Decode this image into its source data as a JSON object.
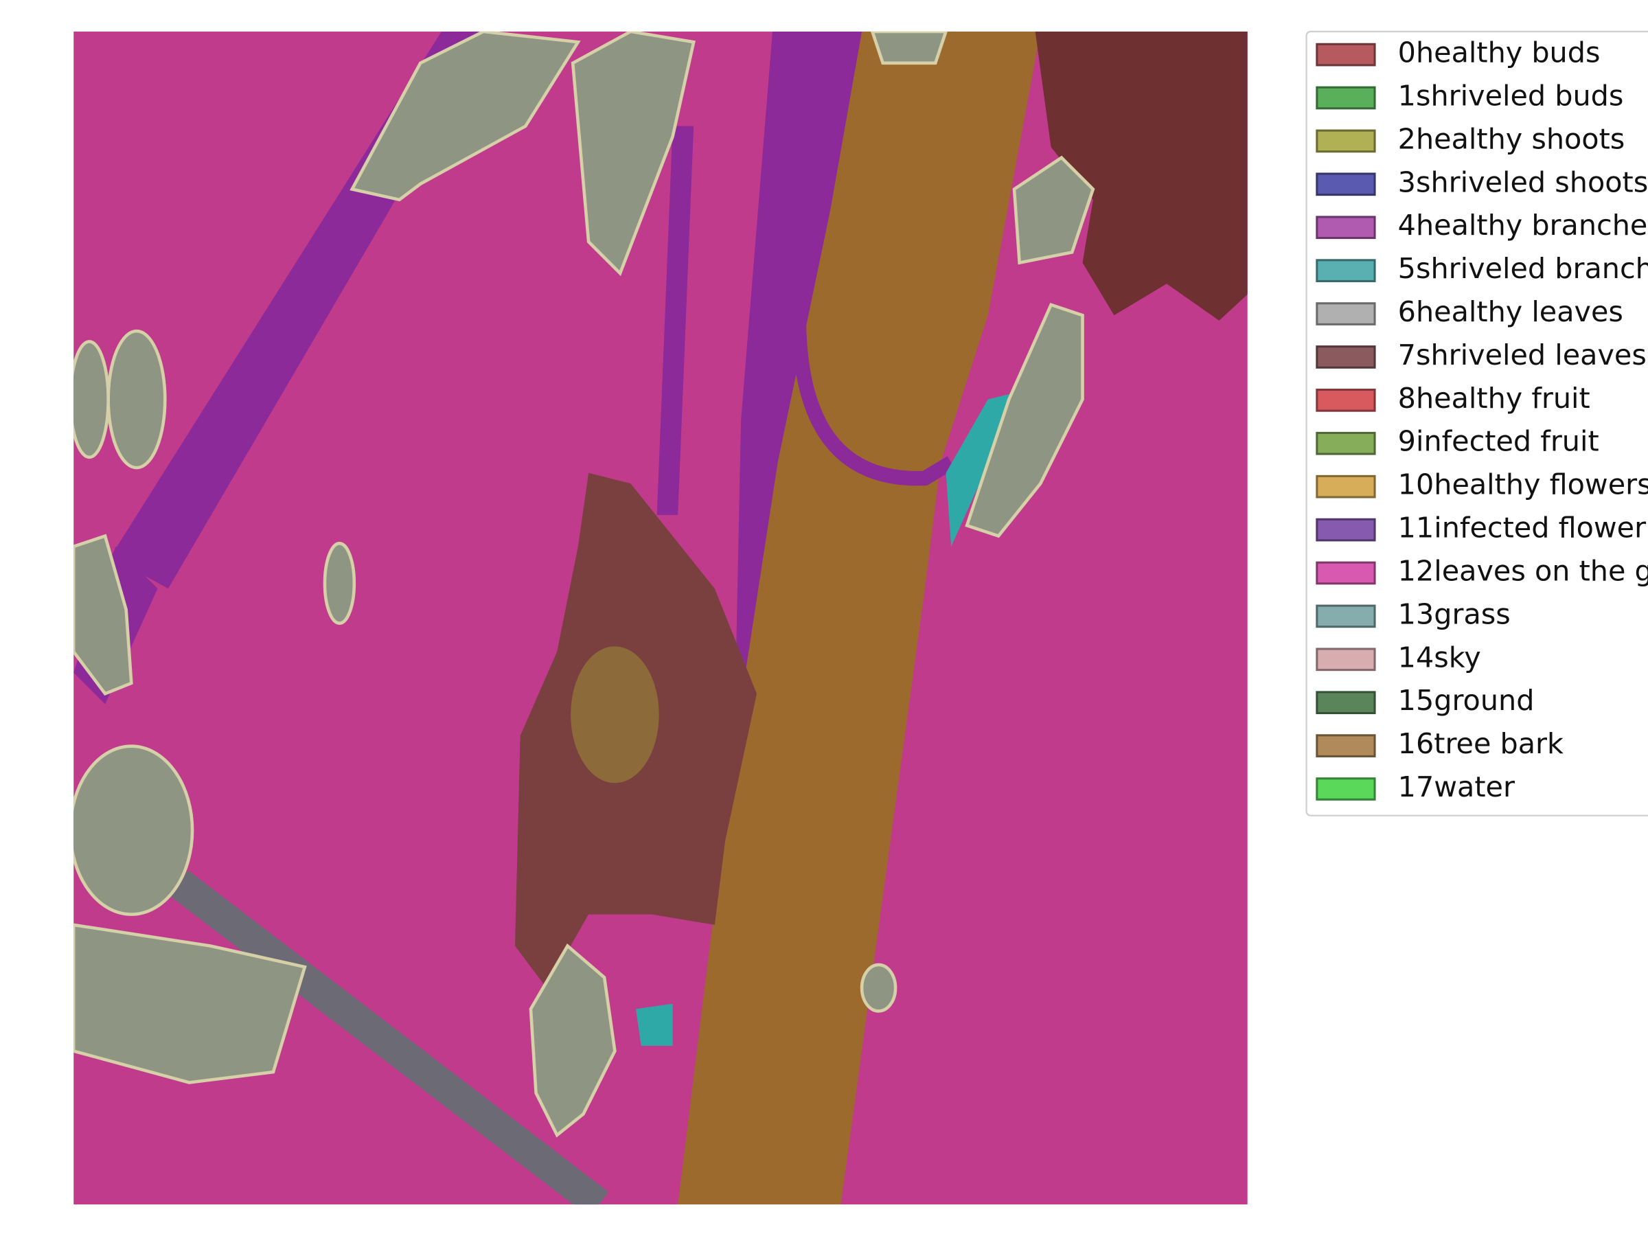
{
  "legend": {
    "items": [
      {
        "label": "0healthy buds",
        "color": "#b65a5f"
      },
      {
        "label": "1shriveled buds",
        "color": "#5aaf5a"
      },
      {
        "label": "2healthy shoots",
        "color": "#b0b055"
      },
      {
        "label": "3shriveled shoots",
        "color": "#5a5ab0"
      },
      {
        "label": "4healthy branche",
        "color": "#b05ab0"
      },
      {
        "label": "5shriveled branch",
        "color": "#5ab0b0"
      },
      {
        "label": "6healthy leaves",
        "color": "#b0b0b0"
      },
      {
        "label": "7shriveled leaves",
        "color": "#8a5a5f"
      },
      {
        "label": "8healthy fruit",
        "color": "#d85a5f"
      },
      {
        "label": "9infected fruit",
        "color": "#85ad5a"
      },
      {
        "label": "10healthy flowers",
        "color": "#d8ad5a"
      },
      {
        "label": "11infected flower",
        "color": "#855aaf"
      },
      {
        "label": "12leaves on the g",
        "color": "#d85ab0"
      },
      {
        "label": "13grass",
        "color": "#85adad"
      },
      {
        "label": "14sky",
        "color": "#d8adb0"
      },
      {
        "label": "15ground",
        "color": "#5a855a"
      },
      {
        "label": "16tree bark",
        "color": "#b08a5a"
      },
      {
        "label": "17water",
        "color": "#5ad85a"
      }
    ]
  }
}
